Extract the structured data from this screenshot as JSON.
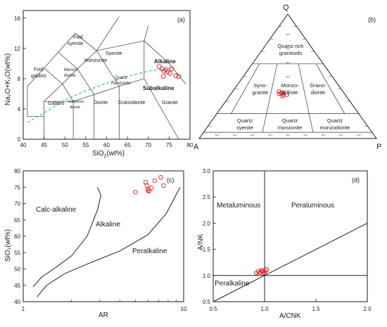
{
  "colors": {
    "sample_points": "#e02020",
    "dashed_divider": "#2bb7b7",
    "lines": "#222222"
  },
  "chart_data": [
    {
      "id": "a",
      "panel_label": "(a)",
      "type": "scatter",
      "xlabel_main": "SiO",
      "xlabel_sub": "2",
      "xlabel_unit": "(wt%)",
      "ylabel": "Na₂O+K₂O(wt%)",
      "xlim": [
        40,
        80
      ],
      "ylim": [
        0,
        17
      ],
      "x_ticks": [
        "40",
        "45",
        "50",
        "55",
        "60",
        "65",
        "70",
        "75",
        "80"
      ],
      "y_ticks": [
        "0",
        "4",
        "8",
        "12",
        "16"
      ],
      "field_labels": [
        "Foid syenite",
        "Syenite",
        "Foid gabbro",
        "Monzo-diorite",
        "Monzonite",
        "Quartz monzonite",
        "Gabbro",
        "Gabbroic diorite",
        "Diorite",
        "Granodiorite",
        "Granite"
      ],
      "series_labels": [
        "Alkaline",
        "Subalkaline"
      ],
      "points": [
        [
          72.6,
          9.6
        ],
        [
          73.3,
          9.3
        ],
        [
          73.8,
          9.0
        ],
        [
          74.2,
          9.2
        ],
        [
          74.6,
          8.9
        ],
        [
          75.2,
          8.7
        ],
        [
          73.6,
          8.3
        ],
        [
          76.6,
          8.4
        ],
        [
          77.3,
          8.3
        ],
        [
          75.6,
          9.3
        ]
      ]
    },
    {
      "id": "b",
      "panel_label": "(b)",
      "type": "scatter",
      "apex_labels": [
        "Q",
        "A",
        "P"
      ],
      "field_labels": [
        "Quartz-rich granitoids",
        "Syno-granite",
        "Monzo-granite",
        "Grano-diorite",
        "Quartz syenite",
        "Quartz monzonite",
        "Quartz monzodiorite"
      ],
      "points_QAP": [
        [
          38,
          36,
          26
        ],
        [
          37,
          35,
          28
        ],
        [
          36,
          37,
          27
        ],
        [
          35,
          35,
          30
        ],
        [
          37,
          34,
          29
        ],
        [
          36,
          36,
          28
        ],
        [
          34,
          36,
          30
        ],
        [
          35,
          33,
          32
        ]
      ]
    },
    {
      "id": "c",
      "panel_label": "(c)",
      "type": "scatter",
      "xlabel": "AR",
      "ylabel": "SiO₂(wt%)",
      "x_scale": "log",
      "xlim": [
        1,
        10
      ],
      "ylim": [
        40,
        80
      ],
      "x_ticks": [
        "1",
        "10"
      ],
      "y_ticks": [
        "40",
        "45",
        "50",
        "55",
        "60",
        "65",
        "70",
        "75",
        "80"
      ],
      "field_labels": [
        "Calc-alkaline",
        "Alkaline",
        "Peralkaline"
      ],
      "points": [
        [
          5.0,
          73.5
        ],
        [
          5.8,
          76.5
        ],
        [
          5.9,
          75.5
        ],
        [
          6.0,
          74.5
        ],
        [
          6.1,
          73.8
        ],
        [
          6.3,
          74.8
        ],
        [
          6.6,
          77.0
        ],
        [
          7.2,
          78.0
        ],
        [
          7.5,
          75.5
        ],
        [
          6.0,
          74.0
        ]
      ]
    },
    {
      "id": "d",
      "panel_label": "(d)",
      "type": "scatter",
      "xlabel": "A/CNK",
      "ylabel": "A/NK",
      "xlim": [
        0.5,
        2.0
      ],
      "ylim": [
        0.5,
        3.0
      ],
      "x_ticks": [
        "0.5",
        "1.0",
        "1.5",
        "2.0"
      ],
      "y_ticks": [
        "0.5",
        "1.0",
        "1.5",
        "2.0",
        "2.5",
        "3.0"
      ],
      "field_labels": [
        "Metaluminous",
        "Peraluminous",
        "Peralkaline"
      ],
      "points": [
        [
          0.92,
          1.05
        ],
        [
          0.94,
          1.08
        ],
        [
          0.96,
          1.06
        ],
        [
          0.97,
          1.1
        ],
        [
          0.99,
          1.07
        ],
        [
          1.0,
          1.05
        ],
        [
          1.01,
          1.09
        ],
        [
          1.02,
          1.12
        ],
        [
          0.95,
          1.04
        ],
        [
          0.98,
          1.09
        ]
      ]
    }
  ]
}
